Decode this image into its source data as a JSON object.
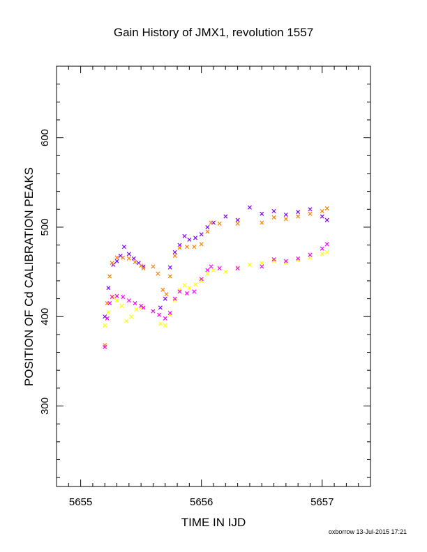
{
  "chart_data": {
    "type": "scatter",
    "title": "Gain History of JMX1, revolution 1557",
    "xlabel": "TIME IN IJD",
    "ylabel": "POSITION OF Cd CALIBRATION PEAKS",
    "xlim": [
      5654.8,
      5657.4
    ],
    "ylim": [
      210,
      680
    ],
    "x_ticks": [
      5655,
      5656,
      5657
    ],
    "x_tick_labels": [
      "5655",
      "5656",
      "5657"
    ],
    "y_ticks": [
      300,
      400,
      500,
      600
    ],
    "y_tick_labels": [
      "300",
      "400",
      "500",
      "600"
    ],
    "grid": false,
    "legend": "none",
    "credit": "oxborrow 13-Jul-2015 17:21",
    "series": [
      {
        "marker": "cross",
        "color": "#7f00ff",
        "x": [
          5655.2,
          5655.23,
          5655.27,
          5655.3,
          5655.33,
          5655.36,
          5655.4,
          5655.44,
          5655.48,
          5655.52,
          5655.66,
          5655.7,
          5655.74,
          5655.78,
          5655.82,
          5655.86,
          5655.9,
          5655.95,
          5656.0,
          5656.05,
          5656.1,
          5656.2,
          5656.3,
          5656.4,
          5656.5,
          5656.6,
          5656.7,
          5656.8,
          5656.9,
          5657.0,
          5657.04
        ],
        "y": [
          400,
          432,
          458,
          462,
          468,
          478,
          470,
          465,
          460,
          456,
          410,
          420,
          455,
          472,
          480,
          490,
          486,
          488,
          492,
          500,
          505,
          512,
          508,
          522,
          515,
          518,
          514,
          517,
          520,
          512,
          508
        ]
      },
      {
        "marker": "cross",
        "color": "#ffff00",
        "x": [
          5655.2,
          5655.23,
          5655.27,
          5655.3,
          5655.34,
          5655.38,
          5655.42,
          5655.46,
          5655.5,
          5655.66,
          5655.7,
          5655.74,
          5655.78,
          5655.82,
          5655.86,
          5655.9,
          5655.95,
          5656.0,
          5656.05,
          5656.1,
          5656.2,
          5656.3,
          5656.4,
          5656.5,
          5656.6,
          5656.7,
          5656.8,
          5656.9,
          5657.0,
          5657.04
        ],
        "y": [
          390,
          405,
          422,
          418,
          412,
          395,
          400,
          408,
          410,
          392,
          390,
          402,
          418,
          430,
          435,
          432,
          436,
          440,
          448,
          452,
          450,
          455,
          458,
          460,
          462,
          460,
          463,
          466,
          470,
          472
        ]
      },
      {
        "marker": "cross",
        "color": "#ff7f00",
        "x": [
          5655.2,
          5655.22,
          5655.24,
          5655.26,
          5655.3,
          5655.35,
          5655.4,
          5655.45,
          5655.5,
          5655.52,
          5655.6,
          5655.64,
          5655.68,
          5655.71,
          5655.74,
          5655.78,
          5655.82,
          5655.88,
          5655.94,
          5656.0,
          5656.05,
          5656.08,
          5656.15,
          5656.3,
          5656.5,
          5656.6,
          5656.7,
          5656.8,
          5656.9,
          5657.0,
          5657.04
        ],
        "y": [
          368,
          415,
          445,
          460,
          466,
          466,
          465,
          461,
          457,
          454,
          456,
          448,
          430,
          425,
          445,
          468,
          477,
          478,
          478,
          481,
          495,
          505,
          504,
          504,
          505,
          511,
          509,
          512,
          515,
          518,
          521
        ]
      },
      {
        "marker": "cross",
        "color": "#ff00ff",
        "x": [
          5655.2,
          5655.22,
          5655.24,
          5655.26,
          5655.3,
          5655.35,
          5655.4,
          5655.45,
          5655.5,
          5655.52,
          5655.6,
          5655.65,
          5655.7,
          5655.74,
          5655.78,
          5655.82,
          5655.88,
          5655.94,
          5656.0,
          5656.05,
          5656.08,
          5656.15,
          5656.3,
          5656.5,
          5656.6,
          5656.7,
          5656.8,
          5656.9,
          5657.0,
          5657.04
        ],
        "y": [
          366,
          398,
          415,
          422,
          423,
          422,
          418,
          415,
          412,
          410,
          406,
          402,
          398,
          404,
          420,
          428,
          426,
          428,
          442,
          452,
          456,
          454,
          454,
          456,
          464,
          462,
          465,
          469,
          476,
          481
        ]
      }
    ]
  }
}
